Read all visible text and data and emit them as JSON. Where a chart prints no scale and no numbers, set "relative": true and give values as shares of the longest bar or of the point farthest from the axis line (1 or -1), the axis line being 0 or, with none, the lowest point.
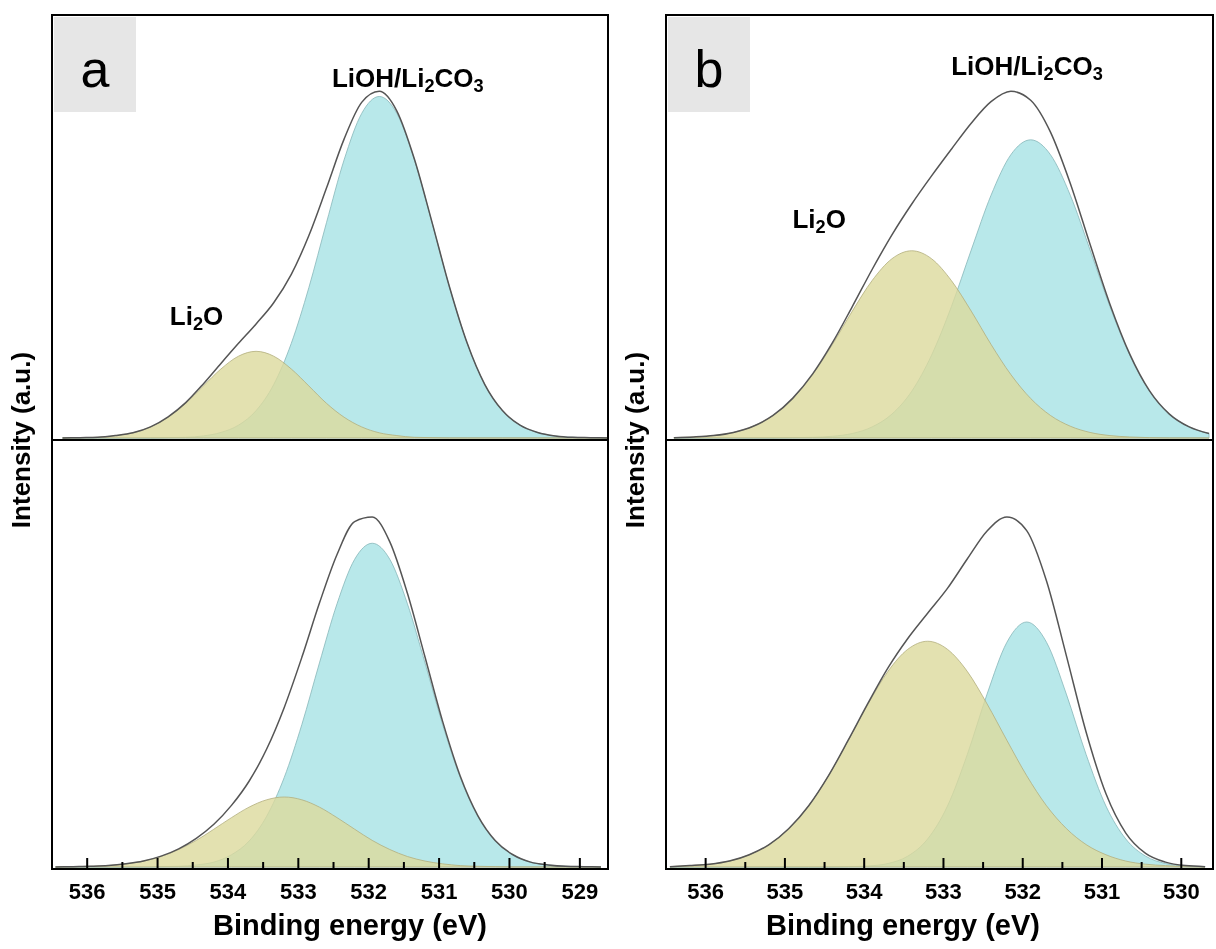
{
  "chart_data": [
    {
      "type": "area",
      "title": "a",
      "ylabel": "Intensity (a.u.)",
      "relative": true,
      "xlim": [
        536.5,
        528.6
      ],
      "tick_labels": false,
      "x": [
        536.35,
        536.1,
        535.85,
        535.6,
        535.35,
        535.1,
        534.85,
        534.6,
        534.35,
        534.1,
        533.85,
        533.6,
        533.35,
        533.1,
        532.85,
        532.6,
        532.35,
        532.1,
        531.85,
        531.6,
        531.35,
        531.1,
        530.85,
        530.6,
        530.35,
        530.1,
        529.85,
        529.6,
        529.35,
        529.1,
        528.85,
        528.6
      ],
      "series": [
        {
          "type": "area",
          "color": "#a6e2e5",
          "values": [
            0,
            0,
            0,
            0,
            0,
            0,
            0.001,
            0.002,
            0.006,
            0.016,
            0.037,
            0.079,
            0.154,
            0.273,
            0.434,
            0.621,
            0.802,
            0.936,
            0.985,
            0.936,
            0.802,
            0.621,
            0.434,
            0.273,
            0.154,
            0.079,
            0.037,
            0.016,
            0.006,
            0.002,
            0.001,
            0
          ]
        },
        {
          "type": "area",
          "color": "#dcd99c",
          "values": [
            0,
            0.001,
            0.002,
            0.007,
            0.015,
            0.032,
            0.06,
            0.1,
            0.15,
            0.199,
            0.236,
            0.25,
            0.236,
            0.199,
            0.15,
            0.1,
            0.06,
            0.032,
            0.015,
            0.007,
            0.002,
            0.001,
            0,
            0,
            0,
            0,
            0,
            0,
            0,
            0,
            0,
            0
          ]
        },
        {
          "type": "line",
          "color": "#555555",
          "values": [
            0,
            0.001,
            0.002,
            0.007,
            0.015,
            0.032,
            0.061,
            0.102,
            0.156,
            0.215,
            0.273,
            0.329,
            0.39,
            0.472,
            0.584,
            0.721,
            0.862,
            0.968,
            1,
            0.943,
            0.804,
            0.622,
            0.434,
            0.273,
            0.154,
            0.079,
            0.037,
            0.016,
            0.006,
            0.002,
            0.001,
            0
          ]
        }
      ],
      "annotations": [
        "LiOH/Li$_{2}$CO$_{3}$",
        "Li$_{2}$O"
      ]
    },
    {
      "type": "area",
      "xlabel": "Binding energy (eV)",
      "relative": true,
      "xlim": [
        536.5,
        528.6
      ],
      "tick_labels": "x",
      "xticks": [
        536,
        {
          "value": 535.5,
          "label": null
        },
        535,
        {
          "value": 534.5,
          "label": null
        },
        534,
        {
          "value": 533.5,
          "label": null
        },
        533,
        {
          "value": 532.5,
          "label": null
        },
        532,
        {
          "value": 531.5,
          "label": null
        },
        531,
        {
          "value": 530.5,
          "label": null
        },
        530,
        {
          "value": 529.5,
          "label": null
        },
        529
      ],
      "x": [
        536.45,
        536.2,
        535.95,
        535.7,
        535.45,
        535.2,
        534.95,
        534.7,
        534.45,
        534.2,
        533.95,
        533.7,
        533.45,
        533.2,
        532.95,
        532.7,
        532.45,
        532.2,
        531.95,
        531.7,
        531.45,
        531.2,
        530.95,
        530.7,
        530.45,
        530.2,
        529.95,
        529.7,
        529.45,
        529.2,
        528.95,
        528.7
      ],
      "series": [
        {
          "type": "area",
          "color": "#a6e2e5",
          "values": [
            0,
            0,
            0,
            0,
            0,
            0,
            0.001,
            0.002,
            0.006,
            0.014,
            0.035,
            0.074,
            0.145,
            0.256,
            0.407,
            0.583,
            0.752,
            0.879,
            0.925,
            0.879,
            0.752,
            0.583,
            0.407,
            0.256,
            0.145,
            0.074,
            0.035,
            0.014,
            0.006,
            0.002,
            0.001,
            0
          ]
        },
        {
          "type": "area",
          "color": "#dcd99c",
          "values": [
            0,
            0.001,
            0.002,
            0.004,
            0.009,
            0.017,
            0.03,
            0.05,
            0.076,
            0.108,
            0.141,
            0.171,
            0.192,
            0.2,
            0.192,
            0.171,
            0.141,
            0.108,
            0.076,
            0.05,
            0.03,
            0.017,
            0.009,
            0.004,
            0.002,
            0.001,
            0,
            0,
            0,
            0,
            0,
            0
          ]
        },
        {
          "type": "line",
          "color": "#555555",
          "values": [
            0,
            0.001,
            0.002,
            0.004,
            0.009,
            0.017,
            0.031,
            0.052,
            0.082,
            0.122,
            0.176,
            0.245,
            0.337,
            0.456,
            0.599,
            0.754,
            0.893,
            0.987,
            1,
            0.929,
            0.782,
            0.6,
            0.416,
            0.26,
            0.147,
            0.075,
            0.035,
            0.014,
            0.006,
            0.002,
            0.001,
            0
          ]
        }
      ]
    },
    {
      "type": "area",
      "title": "b",
      "ylabel": "Intensity (a.u.)",
      "relative": true,
      "xlim": [
        536.5,
        529.6
      ],
      "tick_labels": false,
      "x": [
        536.4,
        536.15,
        535.9,
        535.65,
        535.4,
        535.15,
        534.9,
        534.65,
        534.4,
        534.15,
        533.9,
        533.65,
        533.4,
        533.15,
        532.9,
        532.65,
        532.4,
        532.15,
        531.9,
        531.65,
        531.4,
        531.15,
        530.9,
        530.65,
        530.4,
        530.15,
        529.9,
        529.65
      ],
      "series": [
        {
          "type": "area",
          "color": "#a6e2e5",
          "values": [
            0,
            0,
            0,
            0,
            0,
            0,
            0.001,
            0.002,
            0.005,
            0.013,
            0.032,
            0.069,
            0.135,
            0.239,
            0.379,
            0.542,
            0.7,
            0.817,
            0.86,
            0.817,
            0.7,
            0.542,
            0.379,
            0.239,
            0.135,
            0.069,
            0.032,
            0.013
          ]
        },
        {
          "type": "area",
          "color": "#dcd99c",
          "values": [
            0.001,
            0.003,
            0.007,
            0.016,
            0.034,
            0.065,
            0.114,
            0.183,
            0.27,
            0.366,
            0.454,
            0.517,
            0.54,
            0.517,
            0.454,
            0.366,
            0.27,
            0.183,
            0.114,
            0.065,
            0.034,
            0.016,
            0.007,
            0.003,
            0.001,
            0,
            0,
            0
          ]
        },
        {
          "type": "line",
          "color": "#555555",
          "values": [
            0.001,
            0.003,
            0.007,
            0.016,
            0.034,
            0.065,
            0.115,
            0.185,
            0.275,
            0.379,
            0.486,
            0.586,
            0.675,
            0.756,
            0.833,
            0.908,
            0.97,
            1,
            0.974,
            0.882,
            0.734,
            0.558,
            0.386,
            0.242,
            0.136,
            0.069,
            0.032,
            0.013
          ]
        }
      ],
      "annotations": [
        "LiOH/Li$_{2}$CO$_{3}$",
        "Li$_{2}$O"
      ]
    },
    {
      "type": "area",
      "xlabel": "Binding energy (eV)",
      "relative": true,
      "xlim": [
        536.5,
        529.6
      ],
      "tick_labels": "x",
      "xticks": [
        536,
        {
          "value": 535.5,
          "label": null
        },
        535,
        {
          "value": 534.5,
          "label": null
        },
        534,
        {
          "value": 533.5,
          "label": null
        },
        533,
        {
          "value": 532.5,
          "label": null
        },
        532,
        {
          "value": 531.5,
          "label": null
        },
        531,
        {
          "value": 530.5,
          "label": null
        },
        530
      ],
      "x": [
        536.45,
        536.2,
        535.95,
        535.7,
        535.45,
        535.2,
        534.95,
        534.7,
        534.45,
        534.2,
        533.95,
        533.7,
        533.45,
        533.2,
        532.95,
        532.7,
        532.45,
        532.2,
        531.95,
        531.7,
        531.45,
        531.2,
        530.95,
        530.7,
        530.45,
        530.2,
        529.95,
        529.7
      ],
      "series": [
        {
          "type": "area",
          "color": "#a6e2e5",
          "values": [
            0,
            0,
            0,
            0,
            0,
            0,
            0,
            0,
            0,
            0.001,
            0.003,
            0.01,
            0.031,
            0.08,
            0.174,
            0.321,
            0.494,
            0.642,
            0.7,
            0.642,
            0.494,
            0.321,
            0.174,
            0.08,
            0.031,
            0.01,
            0.003,
            0.001
          ]
        },
        {
          "type": "area",
          "color": "#dcd99c",
          "values": [
            0.001,
            0.004,
            0.008,
            0.017,
            0.035,
            0.064,
            0.11,
            0.175,
            0.261,
            0.362,
            0.466,
            0.559,
            0.622,
            0.645,
            0.622,
            0.559,
            0.466,
            0.362,
            0.261,
            0.175,
            0.11,
            0.064,
            0.035,
            0.017,
            0.008,
            0.004,
            0.001,
            0
          ]
        },
        {
          "type": "line",
          "color": "#555555",
          "values": [
            0.001,
            0.004,
            0.008,
            0.017,
            0.035,
            0.064,
            0.11,
            0.175,
            0.261,
            0.363,
            0.469,
            0.569,
            0.653,
            0.725,
            0.796,
            0.88,
            0.96,
            1,
            0.961,
            0.817,
            0.604,
            0.385,
            0.209,
            0.097,
            0.039,
            0.014,
            0.004,
            0.001
          ]
        }
      ]
    }
  ]
}
